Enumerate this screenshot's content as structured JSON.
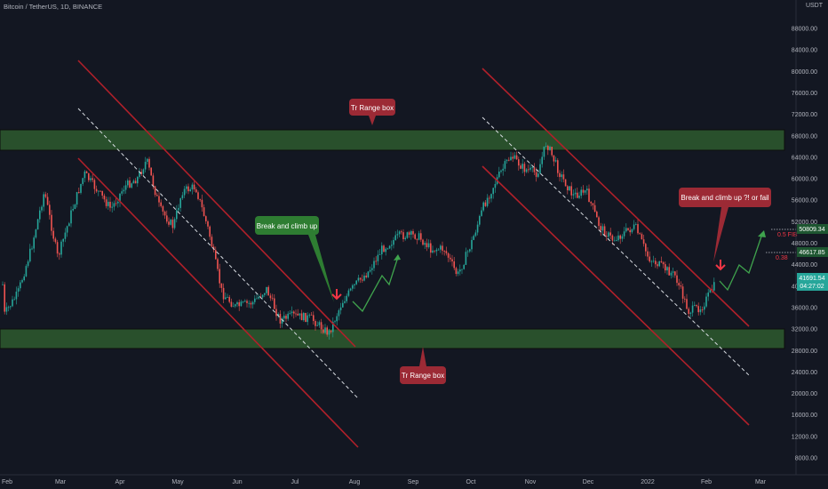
{
  "header": {
    "symbol": "Bitcoin / TetherUS, 1D, BINANCE",
    "currency": "USDT"
  },
  "price_axis": {
    "ticks": [
      "88000.00",
      "84000.00",
      "80000.00",
      "76000.00",
      "72000.00",
      "68000.00",
      "64000.00",
      "60000.00",
      "56000.00",
      "52000.00",
      "48000.00",
      "44000.00",
      "40000.00",
      "36000.00",
      "32000.00",
      "28000.00",
      "24000.00",
      "20000.00",
      "16000.00",
      "12000.00",
      "8000.00"
    ]
  },
  "time_axis": {
    "labels": [
      "Feb",
      "Mar",
      "Apr",
      "May",
      "Jun",
      "Jul",
      "Aug",
      "Sep",
      "Oct",
      "Nov",
      "Dec",
      "2022",
      "Feb",
      "Mar"
    ]
  },
  "annotations": {
    "range_top": "Tr Range box",
    "range_bottom": "Tr Range box",
    "breakout_1": "Break and climb up",
    "breakout_2": "Break and climb up ?! or fail"
  },
  "fib_labels": {
    "fib_05": "0.5 FIB",
    "fib_038": "0.38"
  },
  "price_tags": {
    "tag_1": "50809.34",
    "tag_2": "46617.85",
    "current_price": "41691.54",
    "countdown": "04:27:02"
  },
  "colors": {
    "background": "#131722",
    "range_box": "#2e5a2e",
    "channel": "#b0202a",
    "callout_red": "#9c2a35",
    "callout_green": "#2e7d32",
    "up_candle": "#26a69a",
    "down_candle": "#ef5350",
    "projection": "#3fa34d"
  }
}
